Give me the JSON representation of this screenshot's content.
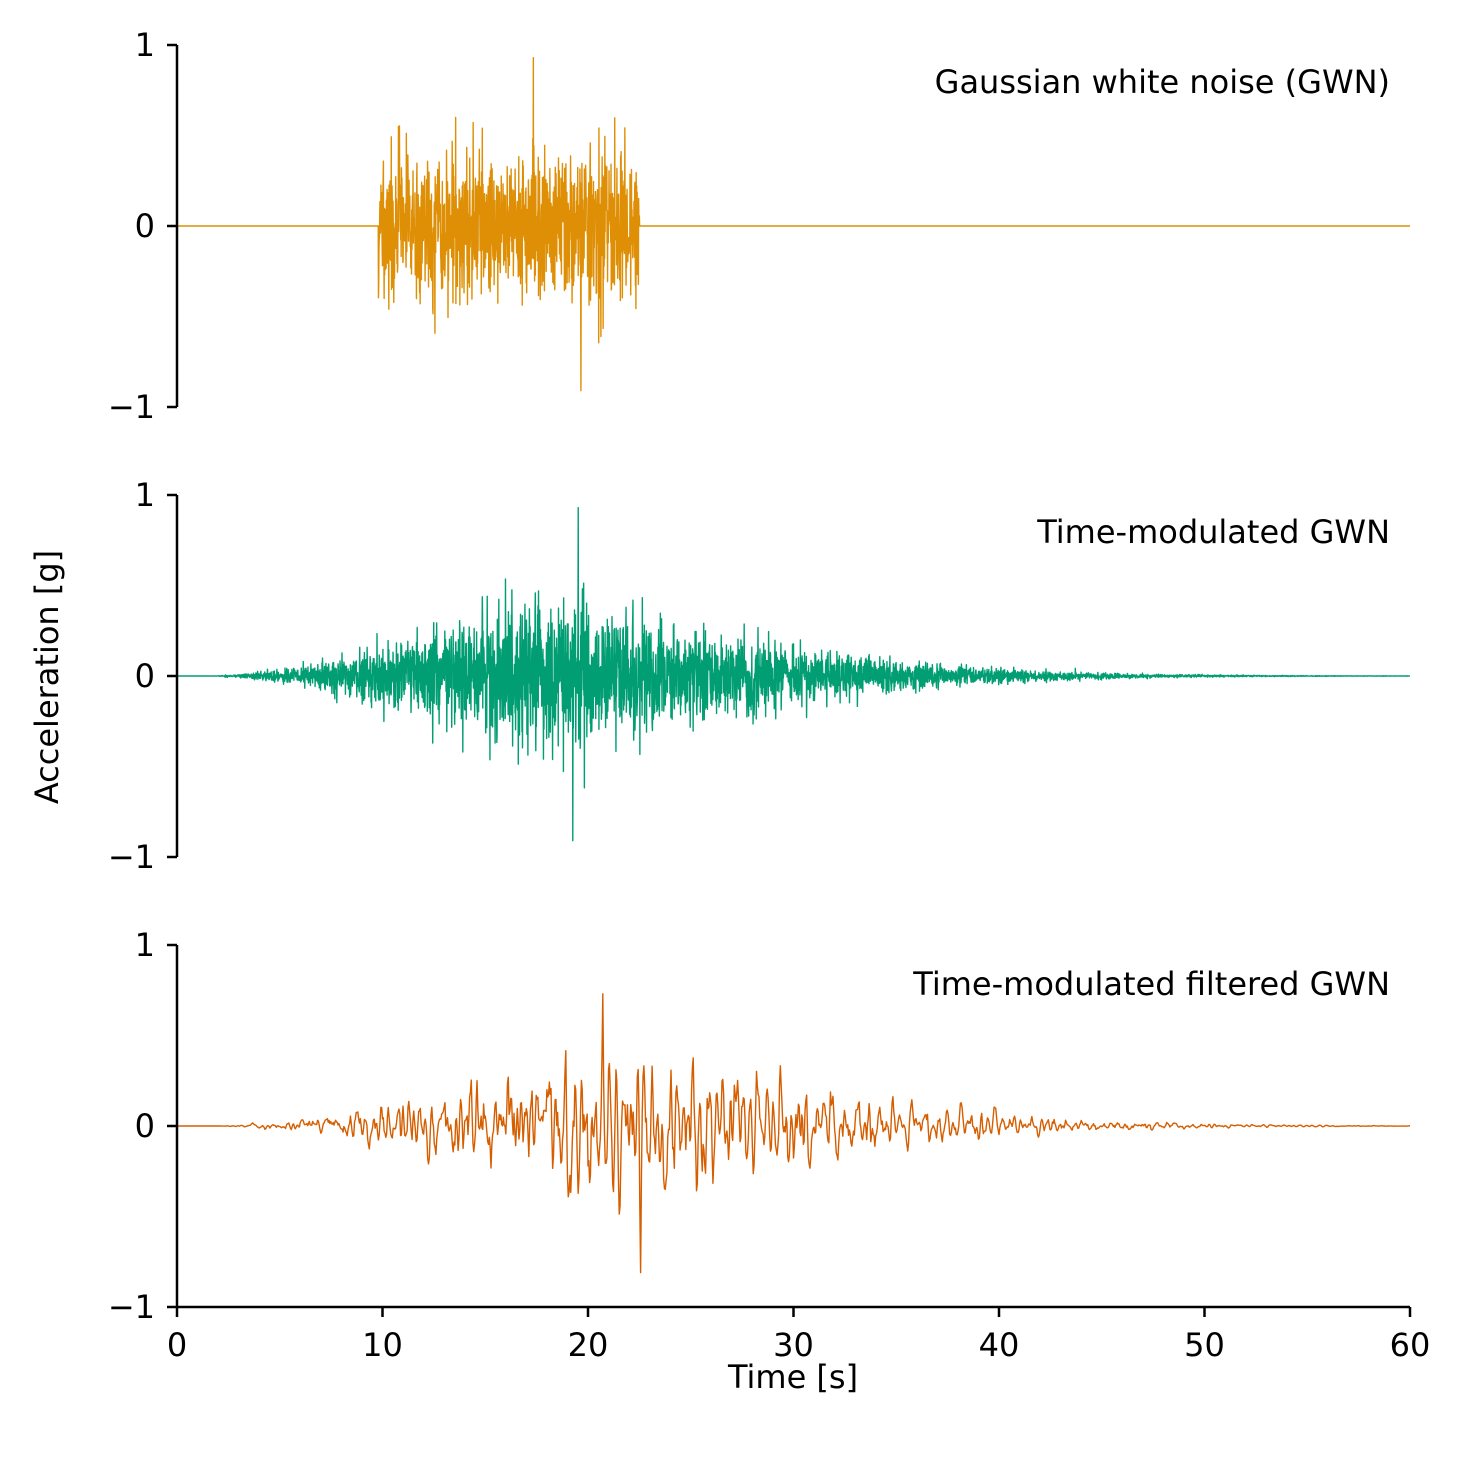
{
  "chart_data": [
    {
      "type": "line",
      "title": "Gaussian white noise (GWN)",
      "xlim": [
        0,
        60
      ],
      "ylim": [
        -1,
        1
      ],
      "ytick_labels": [
        "1",
        "0",
        "−1"
      ],
      "x_axis_shown": false,
      "color": "#DE8F05",
      "series": [
        {
          "envelope": "boxcar",
          "duration": 60,
          "active_start": 9.8,
          "active_end": 22.5,
          "typical_peak": 0.45,
          "max_value": 0.93,
          "min_value": -0.91
        }
      ]
    },
    {
      "type": "line",
      "title": "Time-modulated GWN",
      "xlim": [
        0,
        60
      ],
      "ylim": [
        -1,
        1
      ],
      "ytick_labels": [
        "1",
        "0",
        "−1"
      ],
      "x_axis_shown": false,
      "color": "#029E73",
      "series": [
        {
          "envelope": "time-modulated",
          "duration": 60,
          "onset": 1.5,
          "peak_time": 17,
          "typical_peak": 0.45,
          "max_value": 0.93,
          "min_value": -0.91
        }
      ]
    },
    {
      "type": "line",
      "title": "Time-modulated filtered GWN",
      "xlim": [
        0,
        60
      ],
      "ylim": [
        -1,
        1
      ],
      "ytick_labels": [
        "1",
        "0",
        "−1"
      ],
      "xticks": [
        0,
        10,
        20,
        30,
        40,
        50,
        60
      ],
      "xtick_labels": [
        "0",
        "10",
        "20",
        "30",
        "40",
        "50",
        "60"
      ],
      "x_axis_shown": true,
      "color": "#D55E00",
      "series": [
        {
          "envelope": "time-modulated, low-pass filtered",
          "duration": 60,
          "onset": 2,
          "peak_time": 20,
          "typical_peak": 0.35,
          "max_value": 0.73,
          "min_value": -0.81
        }
      ]
    }
  ],
  "xlabel": "Time [s]",
  "ylabel": "Acceleration [g]"
}
